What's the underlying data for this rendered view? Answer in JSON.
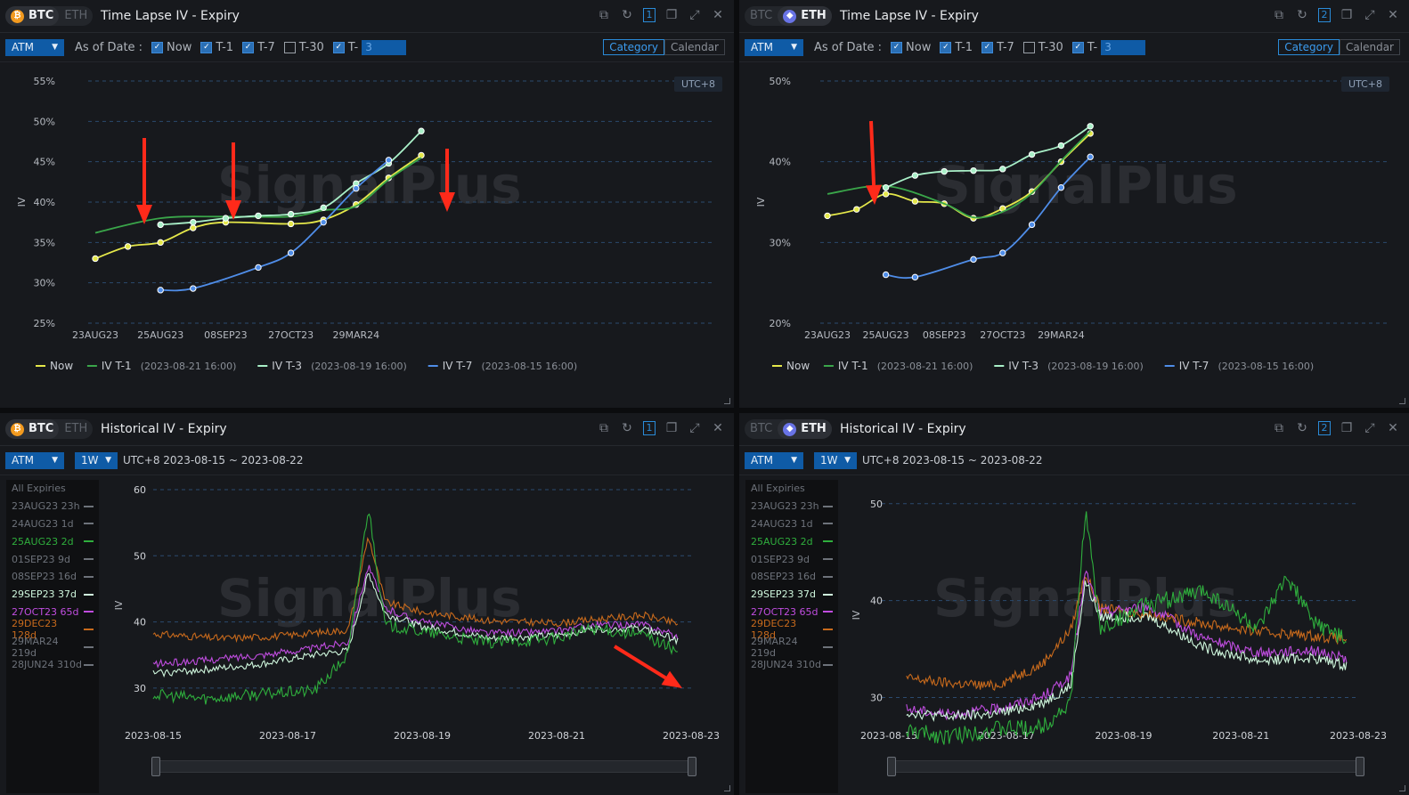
{
  "watermark": "SignalPlus",
  "colors": {
    "now": "#e5e84a",
    "t1": "#3aa64a",
    "t3": "#a9f0c8",
    "t7": "#4f8de8",
    "exp_25aug": "#2fae3d",
    "exp_29sep": "#cff7dd",
    "exp_27oct": "#c04de0",
    "exp_29dec": "#c86a1c",
    "annotation_arrow": "#ff2a1a",
    "accent": "#2a8bd8"
  },
  "panels": {
    "btc_timelapse": {
      "coins": [
        "BTC",
        "ETH"
      ],
      "active_coin": "BTC",
      "title": "Time Lapse IV - Expiry",
      "window_number": "1",
      "atm_select": "ATM",
      "as_of_label": "As of Date :",
      "checks": [
        {
          "label": "Now",
          "checked": true
        },
        {
          "label": "T-1",
          "checked": true
        },
        {
          "label": "T-7",
          "checked": true
        },
        {
          "label": "T-30",
          "checked": false
        },
        {
          "label": "T-",
          "checked": true
        }
      ],
      "custom_t_value": "3",
      "seg": [
        "Category",
        "Calendar"
      ],
      "seg_active": "Category",
      "timezone": "UTC+8"
    },
    "eth_timelapse": {
      "coins": [
        "BTC",
        "ETH"
      ],
      "active_coin": "ETH",
      "title": "Time Lapse IV - Expiry",
      "window_number": "2",
      "atm_select": "ATM",
      "as_of_label": "As of Date :",
      "checks": [
        {
          "label": "Now",
          "checked": true
        },
        {
          "label": "T-1",
          "checked": true
        },
        {
          "label": "T-7",
          "checked": true
        },
        {
          "label": "T-30",
          "checked": false
        },
        {
          "label": "T-",
          "checked": true
        }
      ],
      "custom_t_value": "3",
      "seg": [
        "Category",
        "Calendar"
      ],
      "seg_active": "Category",
      "timezone": "UTC+8"
    },
    "btc_historical": {
      "coins": [
        "BTC",
        "ETH"
      ],
      "active_coin": "BTC",
      "title": "Historical IV - Expiry",
      "window_number": "1",
      "atm_select": "ATM",
      "period_select": "1W",
      "range_text": "UTC+8 2023-08-15 ~ 2023-08-22",
      "expiries": [
        {
          "label": "All Expiries",
          "color": "#6d727a"
        },
        {
          "label": "23AUG23 23h",
          "color": "#6d727a"
        },
        {
          "label": "24AUG23 1d",
          "color": "#6d727a"
        },
        {
          "label": "25AUG23 2d",
          "color": "#2fae3d"
        },
        {
          "label": "01SEP23 9d",
          "color": "#6d727a"
        },
        {
          "label": "08SEP23 16d",
          "color": "#6d727a"
        },
        {
          "label": "29SEP23 37d",
          "color": "#cff7dd"
        },
        {
          "label": "27OCT23 65d",
          "color": "#c04de0"
        },
        {
          "label": "29DEC23 128d",
          "color": "#c86a1c"
        },
        {
          "label": "29MAR24 219d",
          "color": "#6d727a"
        },
        {
          "label": "28JUN24 310d",
          "color": "#6d727a"
        }
      ]
    },
    "eth_historical": {
      "coins": [
        "BTC",
        "ETH"
      ],
      "active_coin": "ETH",
      "title": "Historical IV - Expiry",
      "window_number": "2",
      "atm_select": "ATM",
      "period_select": "1W",
      "range_text": "UTC+8 2023-08-15 ~ 2023-08-22",
      "expiries": [
        {
          "label": "All Expiries",
          "color": "#6d727a"
        },
        {
          "label": "23AUG23 23h",
          "color": "#6d727a"
        },
        {
          "label": "24AUG23 1d",
          "color": "#6d727a"
        },
        {
          "label": "25AUG23 2d",
          "color": "#2fae3d"
        },
        {
          "label": "01SEP23 9d",
          "color": "#6d727a"
        },
        {
          "label": "08SEP23 16d",
          "color": "#6d727a"
        },
        {
          "label": "29SEP23 37d",
          "color": "#cff7dd"
        },
        {
          "label": "27OCT23 65d",
          "color": "#c04de0"
        },
        {
          "label": "29DEC23 128d",
          "color": "#c86a1c"
        },
        {
          "label": "29MAR24 219d",
          "color": "#6d727a"
        },
        {
          "label": "28JUN24 310d",
          "color": "#6d727a"
        }
      ]
    }
  },
  "chart_data": [
    {
      "id": "btc_timelapse",
      "type": "line",
      "ylabel": "IV",
      "ylim": [
        25,
        55
      ],
      "yticks": [
        25,
        30,
        35,
        40,
        45,
        50,
        55
      ],
      "y_suffix": "%",
      "x_tick_labels": [
        "23AUG23",
        "25AUG23",
        "08SEP23",
        "27OCT23",
        "29MAR24"
      ],
      "series": [
        {
          "name": "Now",
          "key": "now",
          "points": [
            [
              0,
              33.0
            ],
            [
              0.5,
              34.5
            ],
            [
              1,
              35.0
            ],
            [
              1.5,
              36.8
            ],
            [
              2,
              37.5
            ],
            [
              3,
              37.3
            ],
            [
              3.5,
              37.8
            ],
            [
              4,
              39.7
            ],
            [
              4.5,
              43.0
            ],
            [
              5,
              45.8
            ]
          ]
        },
        {
          "name": "IV T-1",
          "tag": "(2023-08-21 16:00)",
          "key": "t1",
          "points": [
            [
              0,
              36.2
            ],
            [
              1,
              38.0
            ],
            [
              2,
              38.2
            ],
            [
              3,
              38.2
            ],
            [
              3.5,
              39.0
            ],
            [
              4,
              39.5
            ],
            [
              4.5,
              42.8
            ],
            [
              5,
              45.5
            ]
          ]
        },
        {
          "name": "IV T-3",
          "tag": "(2023-08-19 16:00)",
          "key": "t3",
          "points": [
            [
              1,
              37.2
            ],
            [
              1.5,
              37.5
            ],
            [
              2,
              38.0
            ],
            [
              2.5,
              38.3
            ],
            [
              3,
              38.5
            ],
            [
              3.5,
              39.3
            ],
            [
              4,
              42.3
            ],
            [
              4.5,
              44.8
            ],
            [
              5,
              48.8
            ]
          ]
        },
        {
          "name": "IV T-7",
          "tag": "(2023-08-15 16:00)",
          "key": "t7",
          "points": [
            [
              1,
              29.1
            ],
            [
              1.5,
              29.3
            ],
            [
              2.5,
              31.9
            ],
            [
              3,
              33.7
            ],
            [
              3.5,
              37.5
            ],
            [
              4,
              41.7
            ],
            [
              4.5,
              45.2
            ]
          ]
        }
      ]
    },
    {
      "id": "eth_timelapse",
      "type": "line",
      "ylabel": "IV",
      "ylim": [
        20,
        50
      ],
      "yticks": [
        20,
        30,
        40,
        50
      ],
      "y_suffix": "%",
      "x_tick_labels": [
        "23AUG23",
        "25AUG23",
        "08SEP23",
        "27OCT23",
        "29MAR24"
      ],
      "series": [
        {
          "name": "Now",
          "key": "now",
          "points": [
            [
              0,
              33.3
            ],
            [
              0.5,
              34.1
            ],
            [
              1,
              36.0
            ],
            [
              1.5,
              35.1
            ],
            [
              2,
              34.8
            ],
            [
              2.5,
              33.0
            ],
            [
              3,
              34.2
            ],
            [
              3.5,
              36.3
            ],
            [
              4,
              40.0
            ],
            [
              4.5,
              43.5
            ]
          ]
        },
        {
          "name": "IV T-1",
          "tag": "(2023-08-21 16:00)",
          "key": "t1",
          "points": [
            [
              0,
              36.0
            ],
            [
              1,
              37.0
            ],
            [
              2,
              34.8
            ],
            [
              2.5,
              33.1
            ],
            [
              3,
              33.8
            ],
            [
              3.5,
              36.1
            ],
            [
              4,
              40.1
            ],
            [
              4.5,
              43.8
            ]
          ]
        },
        {
          "name": "IV T-3",
          "tag": "(2023-08-19 16:00)",
          "key": "t3",
          "points": [
            [
              1,
              36.8
            ],
            [
              1.5,
              38.3
            ],
            [
              2,
              38.8
            ],
            [
              2.5,
              38.9
            ],
            [
              3,
              39.1
            ],
            [
              3.5,
              40.9
            ],
            [
              4,
              42.0
            ],
            [
              4.5,
              44.4
            ]
          ]
        },
        {
          "name": "IV T-7",
          "tag": "(2023-08-15 16:00)",
          "key": "t7",
          "points": [
            [
              1,
              26.0
            ],
            [
              1.5,
              25.7
            ],
            [
              2.5,
              27.9
            ],
            [
              3,
              28.7
            ],
            [
              3.5,
              32.2
            ],
            [
              4,
              36.8
            ],
            [
              4.5,
              40.6
            ]
          ]
        }
      ]
    },
    {
      "id": "btc_historical",
      "type": "line",
      "ylabel": "IV",
      "ylim": [
        25,
        60
      ],
      "yticks": [
        30,
        40,
        50,
        60
      ],
      "x_tick_labels": [
        "2023-08-15",
        "2023-08-17",
        "2023-08-19",
        "2023-08-21",
        "2023-08-23"
      ],
      "xlim_days": [
        0,
        8
      ],
      "series": [
        {
          "name": "29DEC23 128d",
          "key": "exp_29dec",
          "points": [
            [
              0,
              38.2
            ],
            [
              1,
              37.5
            ],
            [
              1.8,
              37.8
            ],
            [
              2.9,
              38.8
            ],
            [
              3.2,
              53.0
            ],
            [
              3.45,
              43.0
            ],
            [
              4,
              41.5
            ],
            [
              5,
              40.2
            ],
            [
              6,
              39.8
            ],
            [
              6.5,
              40.3
            ],
            [
              7.3,
              41.0
            ],
            [
              7.8,
              39.7
            ]
          ]
        },
        {
          "name": "27OCT23 65d",
          "key": "exp_27oct",
          "points": [
            [
              0,
              33.6
            ],
            [
              0.8,
              34.2
            ],
            [
              1.6,
              35.0
            ],
            [
              2.4,
              36.0
            ],
            [
              2.9,
              37.0
            ],
            [
              3.2,
              48.5
            ],
            [
              3.45,
              42.0
            ],
            [
              4,
              40.0
            ],
            [
              5,
              38.3
            ],
            [
              6,
              38.6
            ],
            [
              6.5,
              39.5
            ],
            [
              7.3,
              39.6
            ],
            [
              7.8,
              37.8
            ]
          ]
        },
        {
          "name": "29SEP23 37d",
          "key": "exp_29sep",
          "points": [
            [
              0,
              32.2
            ],
            [
              0.8,
              32.8
            ],
            [
              1.6,
              33.6
            ],
            [
              2.4,
              35.0
            ],
            [
              2.9,
              35.6
            ],
            [
              3.2,
              47.5
            ],
            [
              3.45,
              41.2
            ],
            [
              4,
              39.3
            ],
            [
              5,
              37.5
            ],
            [
              6,
              37.9
            ],
            [
              6.5,
              38.9
            ],
            [
              7.3,
              39.0
            ],
            [
              7.8,
              37.2
            ]
          ]
        },
        {
          "name": "25AUG23 2d",
          "key": "exp_25aug",
          "points": [
            [
              0,
              29.0
            ],
            [
              0.8,
              28.4
            ],
            [
              1.6,
              29.1
            ],
            [
              2.4,
              29.6
            ],
            [
              2.9,
              35.0
            ],
            [
              3.2,
              57.5
            ],
            [
              3.45,
              39.5
            ],
            [
              4,
              38.5
            ],
            [
              5,
              36.8
            ],
            [
              6,
              37.5
            ],
            [
              6.5,
              39.0
            ],
            [
              7.3,
              38.0
            ],
            [
              7.8,
              35.6
            ]
          ]
        }
      ]
    },
    {
      "id": "eth_historical",
      "type": "line",
      "ylabel": "IV",
      "ylim": [
        25,
        52
      ],
      "yticks": [
        30,
        40,
        50
      ],
      "x_tick_labels": [
        "2023-08-15",
        "2023-08-17",
        "2023-08-19",
        "2023-08-21",
        "2023-08-23"
      ],
      "xlim_days": [
        0,
        8
      ],
      "series": [
        {
          "name": "29DEC23 128d",
          "key": "exp_29dec",
          "points": [
            [
              0.3,
              32.0
            ],
            [
              1,
              31.5
            ],
            [
              1.8,
              31.2
            ],
            [
              2.6,
              33.4
            ],
            [
              3.1,
              37.0
            ],
            [
              3.35,
              42.8
            ],
            [
              3.6,
              39.2
            ],
            [
              4.4,
              38.6
            ],
            [
              5.4,
              37.6
            ],
            [
              6.3,
              36.8
            ],
            [
              7.2,
              36.4
            ],
            [
              7.8,
              36.0
            ]
          ]
        },
        {
          "name": "27OCT23 65d",
          "key": "exp_27oct",
          "points": [
            [
              0.3,
              28.8
            ],
            [
              1,
              28.3
            ],
            [
              1.8,
              28.8
            ],
            [
              2.6,
              30.0
            ],
            [
              3.1,
              32.2
            ],
            [
              3.35,
              43.0
            ],
            [
              3.6,
              38.8
            ],
            [
              4.4,
              39.4
            ],
            [
              5.4,
              36.0
            ],
            [
              6.3,
              34.6
            ],
            [
              7.2,
              34.9
            ],
            [
              7.8,
              34.0
            ]
          ]
        },
        {
          "name": "29SEP23 37d",
          "key": "exp_29sep",
          "points": [
            [
              0.3,
              28.5
            ],
            [
              1,
              28.0
            ],
            [
              1.8,
              28.3
            ],
            [
              2.6,
              29.4
            ],
            [
              3.1,
              31.2
            ],
            [
              3.35,
              42.0
            ],
            [
              3.6,
              38.3
            ],
            [
              4.4,
              38.4
            ],
            [
              5.4,
              35.1
            ],
            [
              6.3,
              33.8
            ],
            [
              7.2,
              34.1
            ],
            [
              7.8,
              33.3
            ]
          ]
        },
        {
          "name": "25AUG23 2d",
          "key": "exp_25aug",
          "points": [
            [
              0.3,
              26.5
            ],
            [
              1,
              26.0
            ],
            [
              1.8,
              26.7
            ],
            [
              2.6,
              26.9
            ],
            [
              3.1,
              29.5
            ],
            [
              3.35,
              49.5
            ],
            [
              3.6,
              37.0
            ],
            [
              4.4,
              39.6
            ],
            [
              5.4,
              41.0
            ],
            [
              6.3,
              37.0
            ],
            [
              6.8,
              42.5
            ],
            [
              7.2,
              38.0
            ],
            [
              7.8,
              35.8
            ]
          ]
        }
      ]
    }
  ]
}
